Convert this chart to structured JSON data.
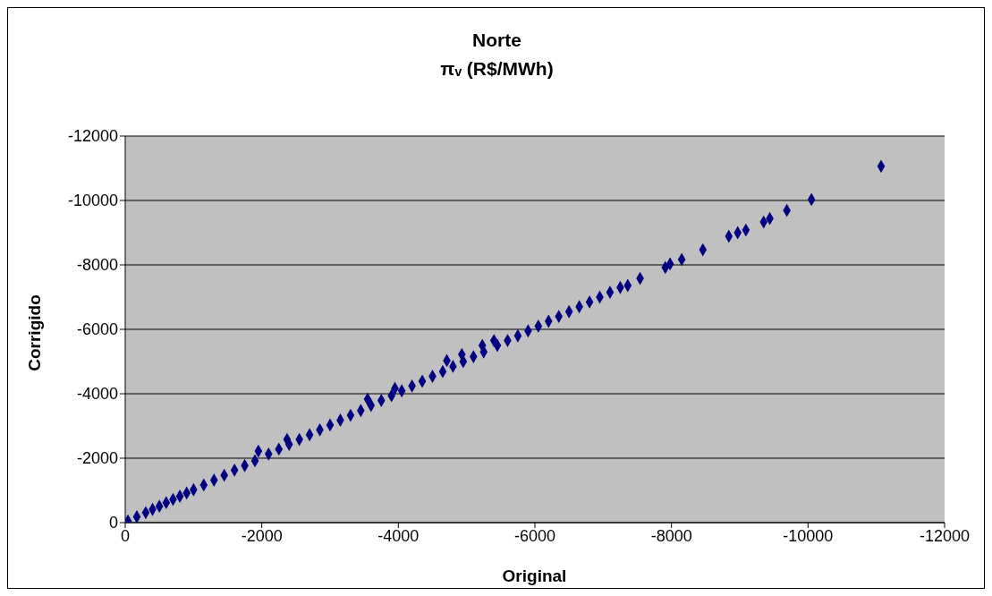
{
  "chart_data": {
    "type": "scatter",
    "title": "Norte",
    "subtitle": "πᵥ (R$/MWh)",
    "xlabel": "Original",
    "ylabel": "Corrigido",
    "x": [
      -40,
      -170,
      -300,
      -400,
      -500,
      -600,
      -700,
      -800,
      -900,
      -1000,
      -1150,
      -1300,
      -1450,
      -1600,
      -1750,
      -1900,
      -1950,
      -2100,
      -2250,
      -2370,
      -2400,
      -2550,
      -2700,
      -2850,
      -3000,
      -3150,
      -3300,
      -3450,
      -3550,
      -3600,
      -3750,
      -3900,
      -3950,
      -4050,
      -4200,
      -4350,
      -4500,
      -4650,
      -4710,
      -4800,
      -4930,
      -4950,
      -5100,
      -5230,
      -5250,
      -5400,
      -5450,
      -5600,
      -5750,
      -5900,
      -6050,
      -6200,
      -6350,
      -6500,
      -6650,
      -6800,
      -6950,
      -7100,
      -7250,
      -7360,
      -7540,
      -7910,
      -7980,
      -8150,
      -8460,
      -8840,
      -8970,
      -9090,
      -9350,
      -9440,
      -9690,
      -10050,
      -11070
    ],
    "values": [
      -50,
      -180,
      -310,
      -410,
      -510,
      -620,
      -720,
      -820,
      -920,
      -1020,
      -1170,
      -1320,
      -1470,
      -1630,
      -1770,
      -1920,
      -2220,
      -2130,
      -2280,
      -2580,
      -2430,
      -2580,
      -2730,
      -2880,
      -3030,
      -3180,
      -3330,
      -3480,
      -3830,
      -3640,
      -3790,
      -3940,
      -4170,
      -4090,
      -4240,
      -4390,
      -4540,
      -4690,
      -5030,
      -4850,
      -5220,
      -5000,
      -5150,
      -5500,
      -5300,
      -5650,
      -5500,
      -5650,
      -5800,
      -5950,
      -6100,
      -6250,
      -6400,
      -6550,
      -6700,
      -6850,
      -7000,
      -7150,
      -7300,
      -7360,
      -7580,
      -7920,
      -8030,
      -8170,
      -8470,
      -8890,
      -9000,
      -9080,
      -9330,
      -9440,
      -9690,
      -10030,
      -11060
    ],
    "color": "#000080",
    "marker": "diamond",
    "xlim": [
      0,
      -12000
    ],
    "xticks": [
      0,
      -2000,
      -4000,
      -6000,
      -8000,
      -10000,
      -12000
    ],
    "ylim": [
      0,
      -12000
    ],
    "yticks": [
      0,
      -2000,
      -4000,
      -6000,
      -8000,
      -10000,
      -12000
    ],
    "grid": "y",
    "legend": false
  }
}
